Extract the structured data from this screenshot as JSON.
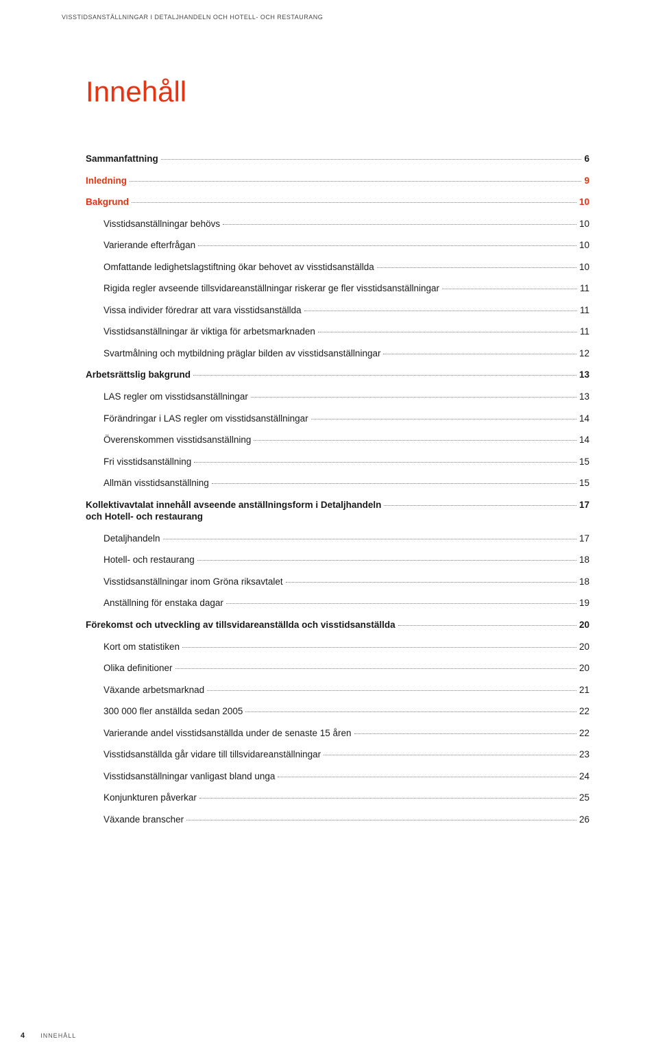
{
  "header": "VISSTIDSANSTÄLLNINGAR I DETALJHANDELN OCH HOTELL- OCH RESTAURANG",
  "title": "Innehåll",
  "title_color": "#e63312",
  "accent_color": "#e63312",
  "toc": [
    {
      "label": "Sammanfattning",
      "page": "6",
      "level": 0
    },
    {
      "label": "Inledning",
      "page": "9",
      "level": 0,
      "accent": true
    },
    {
      "label": "Bakgrund",
      "page": "10",
      "level": 0,
      "accent": true
    },
    {
      "label": "Visstidsanställningar behövs",
      "page": "10",
      "level": 1
    },
    {
      "label": "Varierande efterfrågan",
      "page": "10",
      "level": 1
    },
    {
      "label": "Omfattande ledighetslagstiftning ökar behovet av visstidsanställda",
      "page": "10",
      "level": 1
    },
    {
      "label": "Rigida regler avseende tillsvidareanställningar riskerar ge fler visstidsanställningar",
      "page": "11",
      "level": 1
    },
    {
      "label": "Vissa individer föredrar att vara visstidsanställda",
      "page": "11",
      "level": 1
    },
    {
      "label": "Visstidsanställningar är viktiga för arbetsmarknaden",
      "page": "11",
      "level": 1
    },
    {
      "label": "Svartmålning och mytbildning präglar bilden av visstidsanställningar",
      "page": "12",
      "level": 1
    },
    {
      "label": "Arbetsrättslig bakgrund",
      "page": "13",
      "level": 0
    },
    {
      "label": "LAS regler om visstidsanställningar",
      "page": "13",
      "level": 1
    },
    {
      "label": "Förändringar i LAS regler om visstidsanställningar",
      "page": "14",
      "level": 1
    },
    {
      "label": "Överenskommen visstidsanställning",
      "page": "14",
      "level": 1
    },
    {
      "label": "Fri visstidsanställning",
      "page": "15",
      "level": 1
    },
    {
      "label": "Allmän visstidsanställning",
      "page": "15",
      "level": 1
    },
    {
      "label": "Kollektivavtalat innehåll avseende anställningsform i Detaljhandeln\noch Hotell- och restaurang",
      "page": "17",
      "level": 0
    },
    {
      "label": "Detaljhandeln",
      "page": "17",
      "level": 1
    },
    {
      "label": "Hotell- och restaurang",
      "page": "18",
      "level": 1
    },
    {
      "label": "Visstidsanställningar inom Gröna riksavtalet",
      "page": "18",
      "level": 1
    },
    {
      "label": "Anställning för enstaka dagar",
      "page": "19",
      "level": 1
    },
    {
      "label": "Förekomst och utveckling av tillsvidareanställda och visstidsanställda",
      "page": "20",
      "level": 0
    },
    {
      "label": "Kort om statistiken",
      "page": "20",
      "level": 1
    },
    {
      "label": "Olika definitioner",
      "page": "20",
      "level": 1
    },
    {
      "label": "Växande arbetsmarknad",
      "page": "21",
      "level": 1
    },
    {
      "label": "300 000 fler anställda sedan 2005",
      "page": "22",
      "level": 1
    },
    {
      "label": "Varierande andel visstidsanställda under de senaste 15 åren",
      "page": "22",
      "level": 1
    },
    {
      "label": "Visstidsanställda går vidare till tillsvidareanställningar",
      "page": "23",
      "level": 1
    },
    {
      "label": "Visstidsanställningar vanligast bland unga",
      "page": "24",
      "level": 1
    },
    {
      "label": "Konjunkturen påverkar",
      "page": "25",
      "level": 1
    },
    {
      "label": "Växande branscher",
      "page": "26",
      "level": 1
    }
  ],
  "footer": {
    "page_number": "4",
    "label": "INNEHÅLL"
  }
}
